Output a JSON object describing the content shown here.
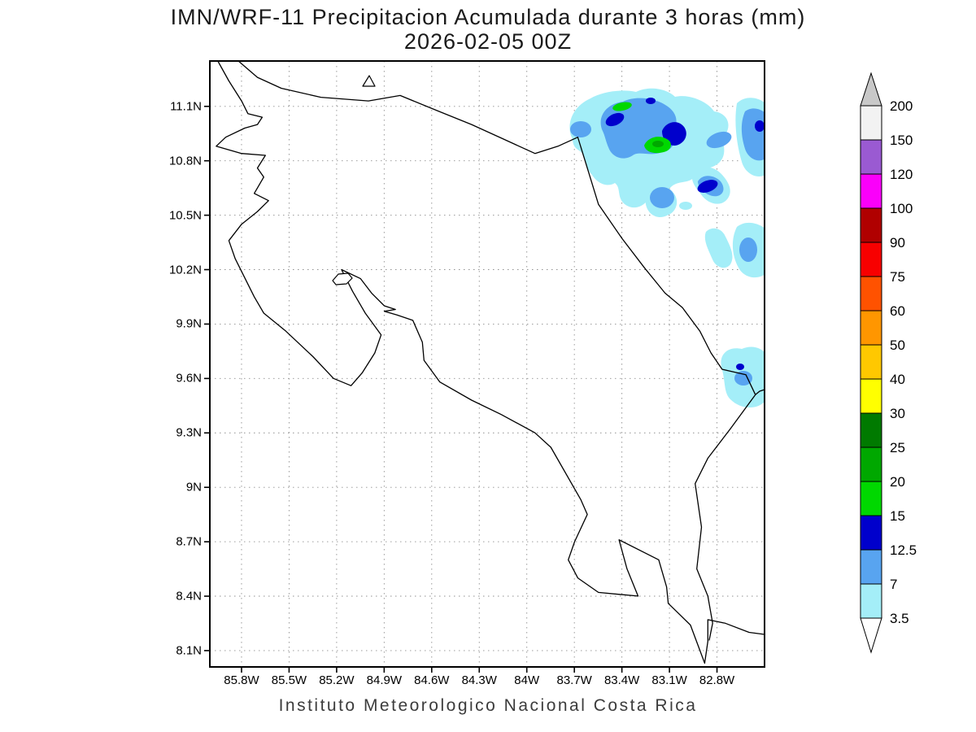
{
  "title": {
    "line1": "IMN/WRF-11 Precipitacion Acumulada durante 3 horas (mm)",
    "line2": "2026-02-05 00Z"
  },
  "footer": "Instituto Meteorologico Nacional Costa Rica",
  "map": {
    "extent": {
      "lon_west": 86.0,
      "lon_east": 82.5,
      "lat_north": 11.35,
      "lat_south": 8.01
    },
    "x_axis": {
      "ticks": [
        {
          "label": "85.8W",
          "lon": 85.8
        },
        {
          "label": "85.5W",
          "lon": 85.5
        },
        {
          "label": "85.2W",
          "lon": 85.2
        },
        {
          "label": "84.9W",
          "lon": 84.9
        },
        {
          "label": "84.6W",
          "lon": 84.6
        },
        {
          "label": "84.3W",
          "lon": 84.3
        },
        {
          "label": "84W",
          "lon": 84.0
        },
        {
          "label": "83.7W",
          "lon": 83.7
        },
        {
          "label": "83.4W",
          "lon": 83.4
        },
        {
          "label": "83.1W",
          "lon": 83.1
        },
        {
          "label": "82.8W",
          "lon": 82.8
        }
      ]
    },
    "y_axis": {
      "ticks": [
        {
          "label": "11.1N",
          "lat": 11.1
        },
        {
          "label": "10.8N",
          "lat": 10.8
        },
        {
          "label": "10.5N",
          "lat": 10.5
        },
        {
          "label": "10.2N",
          "lat": 10.2
        },
        {
          "label": "9.9N",
          "lat": 9.9
        },
        {
          "label": "9.6N",
          "lat": 9.6
        },
        {
          "label": "9.3N",
          "lat": 9.3
        },
        {
          "label": "9N",
          "lat": 9.0
        },
        {
          "label": "8.7N",
          "lat": 8.7
        },
        {
          "label": "8.4N",
          "lat": 8.4
        },
        {
          "label": "8.1N",
          "lat": 8.1
        }
      ]
    },
    "precipitation": {
      "shaded_bands_visible_mm": [
        "3.5-7",
        "7-12.5",
        "12.5-15",
        "15-20",
        "20-25"
      ],
      "max_band_mm": "20-25",
      "area": "northeast Caribbean sector of the domain (approx. 83.8W-82.5W, 10.4N-11.3N)"
    }
  },
  "colorbar": {
    "units": "mm",
    "levels": [
      "3.5",
      "7",
      "12.5",
      "15",
      "20",
      "25",
      "30",
      "40",
      "50",
      "60",
      "75",
      "90",
      "100",
      "120",
      "150",
      "200"
    ],
    "segment_colors": [
      "#a4eef8",
      "#58a4f0",
      "#0000cc",
      "#00d800",
      "#00a800",
      "#007a00",
      "#ffff00",
      "#ffc800",
      "#ff9600",
      "#ff5200",
      "#f80000",
      "#b00000",
      "#fa00fa",
      "#9a5ad2",
      "#f2f2f2"
    ],
    "below_color": "#ffffff",
    "above_color": "#c8c8c8"
  }
}
